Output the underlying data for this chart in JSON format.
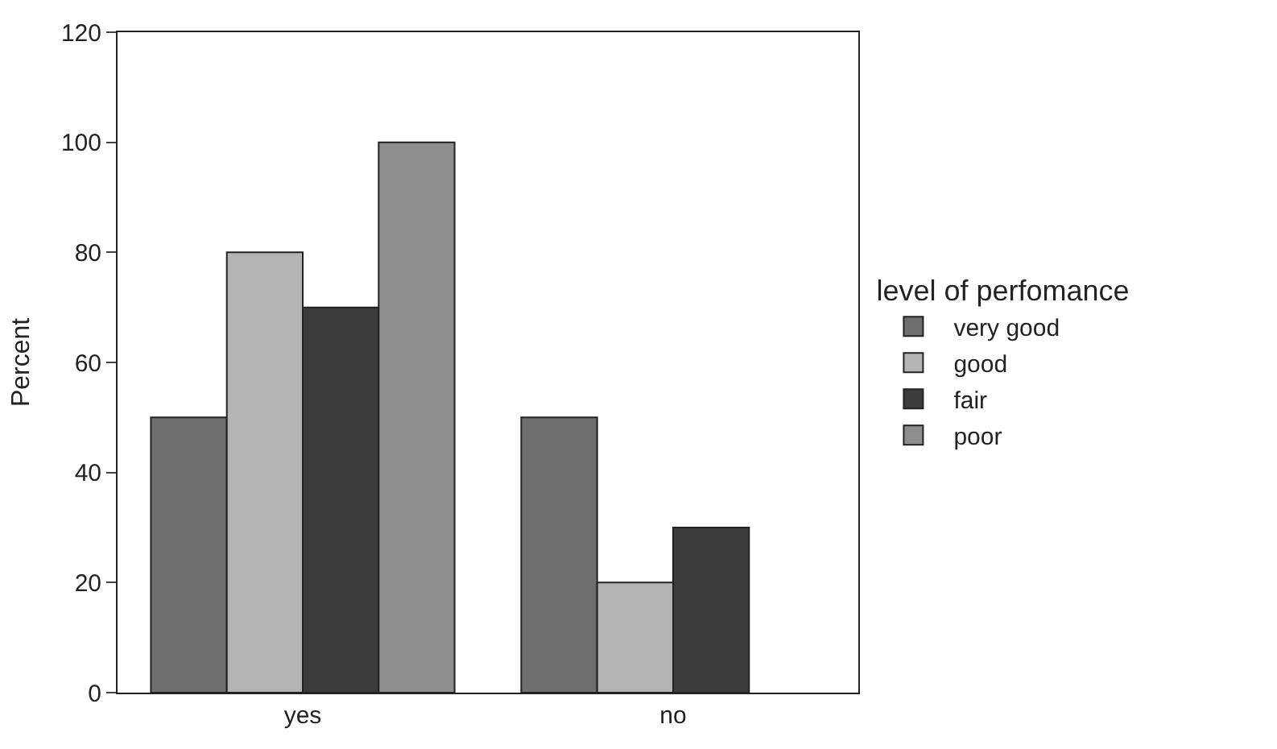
{
  "chart_data": {
    "type": "bar",
    "categories": [
      "yes",
      "no"
    ],
    "series": [
      {
        "name": "very good",
        "color": "#6e6e6e",
        "values": [
          50,
          50
        ]
      },
      {
        "name": "good",
        "color": "#b4b4b4",
        "values": [
          80,
          20
        ]
      },
      {
        "name": "fair",
        "color": "#3c3c3c",
        "values": [
          70,
          30
        ]
      },
      {
        "name": "poor",
        "color": "#8e8e8e",
        "values": [
          100,
          null
        ]
      }
    ],
    "ylabel": "Percent",
    "legend_title": "level of perfomance",
    "ylim": [
      0,
      120
    ],
    "yticks": [
      0,
      20,
      40,
      60,
      80,
      100,
      120
    ],
    "legend": "right"
  }
}
